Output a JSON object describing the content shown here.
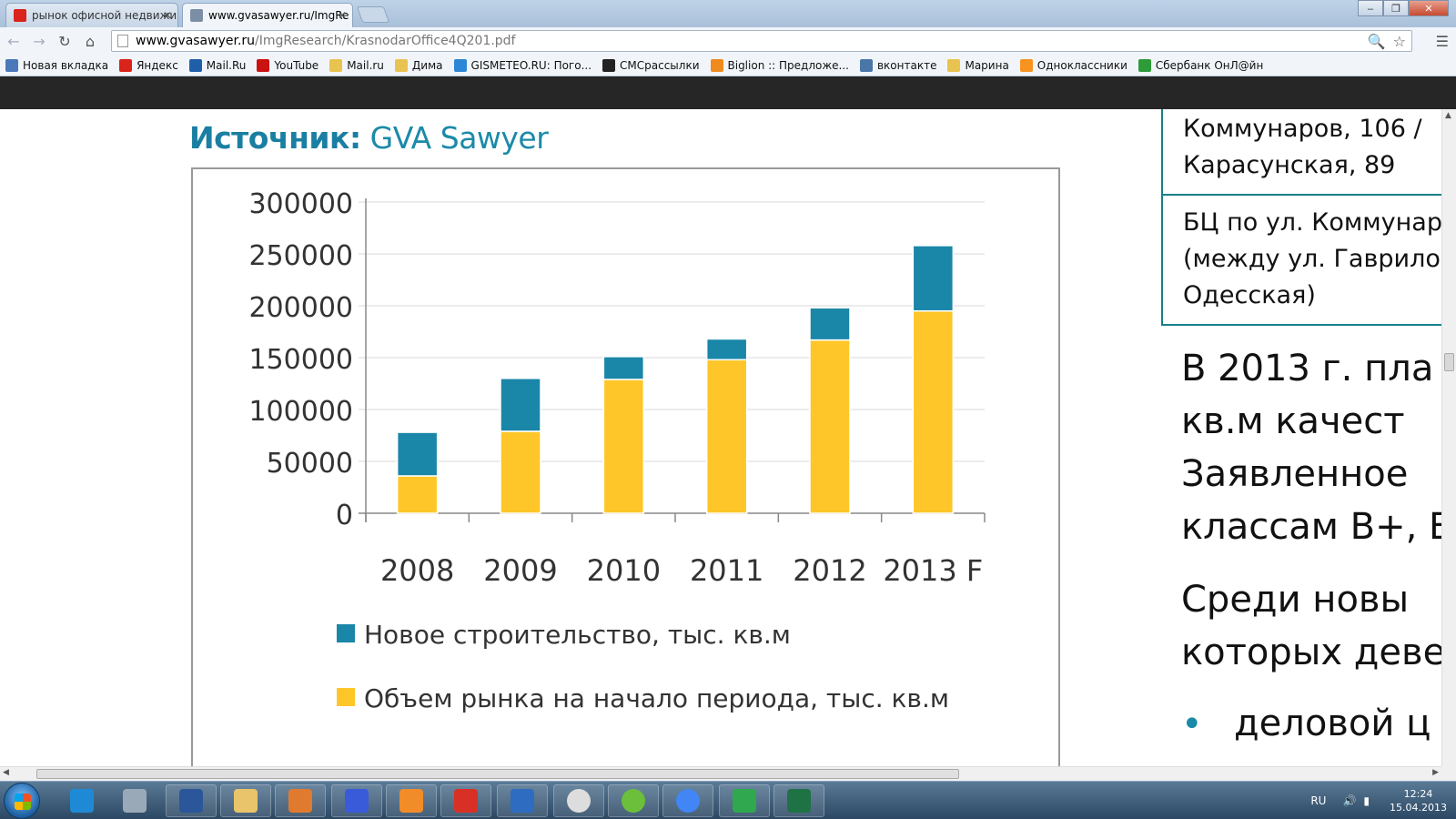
{
  "tabs": [
    {
      "title": "рынок офисной недвижи",
      "active": false
    },
    {
      "title": "www.gvasawyer.ru/ImgRe",
      "active": true
    }
  ],
  "window_buttons": {
    "minimize": "‒",
    "maximize": "❐",
    "close": "✕"
  },
  "toolbar": {
    "url_host": "www.gvasawyer.ru",
    "url_path": "/ImgResearch/KrasnodarOffice4Q201.pdf"
  },
  "bookmarks": [
    {
      "label": "Новая вкладка",
      "color": "#4a78b8"
    },
    {
      "label": "Яндекс",
      "color": "#d9231b"
    },
    {
      "label": "Mail.Ru",
      "color": "#1f5faa"
    },
    {
      "label": "YouTube",
      "color": "#cc1111"
    },
    {
      "label": "Mail.ru",
      "color": "#e8c350"
    },
    {
      "label": "Дима",
      "color": "#e8c350"
    },
    {
      "label": "GISMETEO.RU: Пого...",
      "color": "#2e86d6"
    },
    {
      "label": "СМСрассылки",
      "color": "#222222"
    },
    {
      "label": "Biglion :: Предложе...",
      "color": "#f08a1c"
    },
    {
      "label": "вконтакте",
      "color": "#4a76a8"
    },
    {
      "label": "Марина",
      "color": "#e8c350"
    },
    {
      "label": "Одноклассники",
      "color": "#f7931e"
    },
    {
      "label": "Сбербанк ОнЛ@йн",
      "color": "#2e9b3a"
    }
  ],
  "page": {
    "source_label": "Источник:",
    "source_value": " GVA Sawyer",
    "table": {
      "row1_lines": [
        "Коммунаров, 106 /",
        "Карасунская, 89"
      ],
      "row2_lines": [
        "БЦ по ул. Коммунаро",
        "(между ул. Гаврилова",
        "Одесская)"
      ]
    },
    "paragraph1_lines": [
      "В  2013  г.  пла",
      "кв.м      качест",
      "Заявленное",
      "классам В+, В."
    ],
    "paragraph2_lines": [
      "Среди      новы",
      "которых деве"
    ],
    "bullet_text": "деловой  ц",
    "bullet_symbol": "•"
  },
  "chart_data": {
    "type": "bar",
    "stacked": true,
    "categories": [
      "2008",
      "2009",
      "2010",
      "2011",
      "2012",
      "2013 F"
    ],
    "series": [
      {
        "name": "Объем рынка на начало периода, тыс. кв.м",
        "color": "#ffc629",
        "values": [
          36000,
          79000,
          129000,
          148000,
          167000,
          195000
        ]
      },
      {
        "name": "Новое строительство, тыс. кв.м",
        "color": "#1a86a8",
        "values": [
          42000,
          51000,
          22000,
          20000,
          31000,
          63000
        ]
      }
    ],
    "ylim": [
      0,
      300000
    ],
    "yticks": [
      "300000",
      "250000",
      "200000",
      "150000",
      "100000",
      "50000",
      "0"
    ],
    "ytick_values": [
      300000,
      250000,
      200000,
      150000,
      100000,
      50000,
      0
    ],
    "grid": true,
    "legend": [
      "Новое строительство, тыс. кв.м",
      "Объем рынка на начало периода, тыс. кв.м"
    ],
    "legend_position": "bottom"
  },
  "taskbar": {
    "apps": [
      {
        "name": "ie",
        "color": "#1e8ad6"
      },
      {
        "name": "calculator",
        "color": "#9aa9b8"
      },
      {
        "name": "word",
        "color": "#2b579a"
      },
      {
        "name": "explorer",
        "color": "#e9c46a"
      },
      {
        "name": "viewer",
        "color": "#e07a2f"
      },
      {
        "name": "floppy",
        "color": "#3a5bd9"
      },
      {
        "name": "media",
        "color": "#f28c28"
      },
      {
        "name": "pin",
        "color": "#d93025"
      },
      {
        "name": "agent",
        "color": "#2d6cc0"
      },
      {
        "name": "clock-app",
        "color": "#dddddd"
      },
      {
        "name": "globe",
        "color": "#6cbf3a"
      },
      {
        "name": "chrome",
        "color": "#4285f4"
      },
      {
        "name": "mail-agent",
        "color": "#2fa84f"
      },
      {
        "name": "excel",
        "color": "#1f7244"
      }
    ],
    "lang": "RU",
    "time": "12:24",
    "date": "15.04.2013"
  }
}
